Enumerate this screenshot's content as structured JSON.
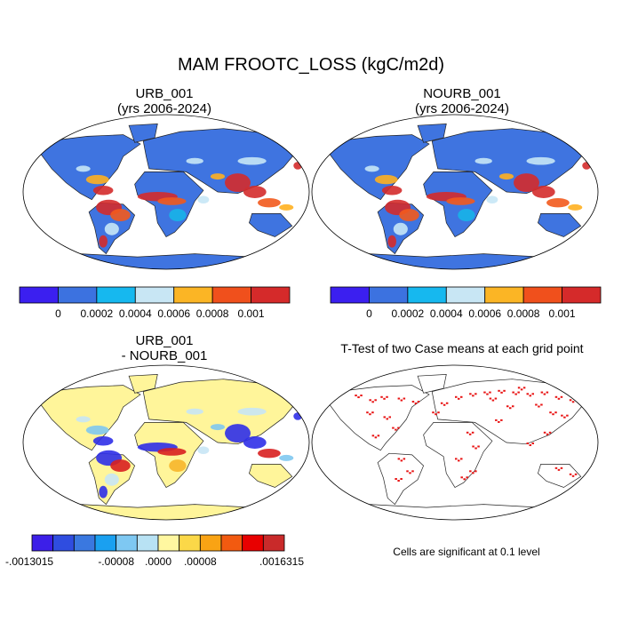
{
  "page": {
    "title": "MAM FROOTC_LOSS (kgC/m2d)",
    "background": "#ffffff"
  },
  "panels": [
    {
      "title_line1": "URB_001",
      "title_line2": "(yrs 2006-2024)",
      "ocean_color": "#ffffff",
      "land_color": "#3f74e0",
      "hotspot_colors": [
        "#d42b2b",
        "#f25a1d",
        "#ffb020",
        "#17b4e8",
        "#c7e7f6"
      ]
    },
    {
      "title_line1": "NOURB_001",
      "title_line2": "(yrs 2006-2024)",
      "ocean_color": "#ffffff",
      "land_color": "#3f74e0",
      "hotspot_colors": [
        "#d42b2b",
        "#f25a1d",
        "#ffb020",
        "#17b4e8",
        "#c7e7f6"
      ]
    },
    {
      "title_line1": "URB_001",
      "title_line2": "- NOURB_001",
      "ocean_color": "#ffffff",
      "land_color": "#fff59a",
      "hotspot_colors": [
        "#2f2fe8",
        "#d82020",
        "#7fc8f0",
        "#f7b62b",
        "#c8e6f5"
      ]
    },
    {
      "title_line1": "T-Test of two Case means at each grid point",
      "title_line2": "",
      "ocean_color": "#ffffff",
      "land_color": "#ffffff",
      "hotspot_colors": [
        "#e81414"
      ]
    }
  ],
  "colorbars": {
    "top": {
      "colors": [
        "#3b1ff0",
        "#3c72e0",
        "#16b8ef",
        "#c8e6f4",
        "#fbb525",
        "#f0501c",
        "#d52a2a"
      ],
      "labels": [
        "0",
        "0.0002",
        "0.0004",
        "0.0006",
        "0.0008",
        "0.001"
      ]
    },
    "diff": {
      "colors": [
        "#3c1fe8",
        "#2f4de0",
        "#3a78e0",
        "#1aa0f0",
        "#7ec8f2",
        "#b8e2f4",
        "#fff7a0",
        "#fbd848",
        "#f9a314",
        "#f25a10",
        "#e80000",
        "#c92a2a"
      ],
      "labels": [
        {
          "text": "-.0013015",
          "boundary": 0
        },
        {
          "text": "-.00008",
          "boundary": 4
        },
        {
          "text": ".0000",
          "boundary": 6
        },
        {
          "text": ".00008",
          "boundary": 8
        },
        {
          "text": ".0016315",
          "boundary": 12
        }
      ]
    }
  },
  "significance_note": "Cells are significant at 0.1 level"
}
